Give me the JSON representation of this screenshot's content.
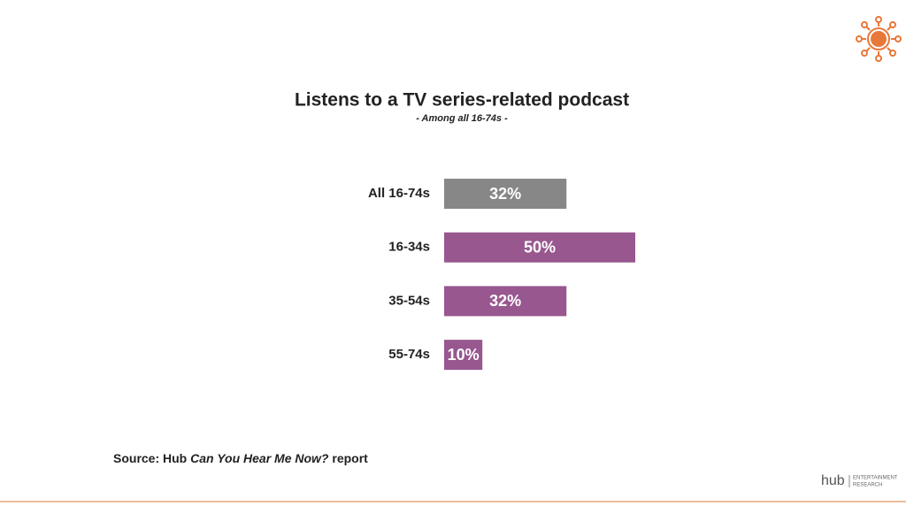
{
  "chart_data": {
    "type": "bar",
    "orientation": "horizontal",
    "title": "Listens to a TV series-related podcast",
    "subtitle": "- Among all 16-74s -",
    "categories": [
      "All 16-74s",
      "16-34s",
      "35-54s",
      "55-74s"
    ],
    "values": [
      32,
      50,
      32,
      10
    ],
    "value_labels": [
      "32%",
      "50%",
      "32%",
      "10%"
    ],
    "colors": [
      "#878787",
      "#98578f",
      "#98578f",
      "#98578f"
    ]
  },
  "footer": {
    "source_prefix": "Source: Hub ",
    "source_title": "Can You Hear Me Now?",
    "source_suffix": " report",
    "logo": "hub",
    "logo_sub_1": "ENTERTAINMENT",
    "logo_sub_2": "RESEARCH"
  }
}
